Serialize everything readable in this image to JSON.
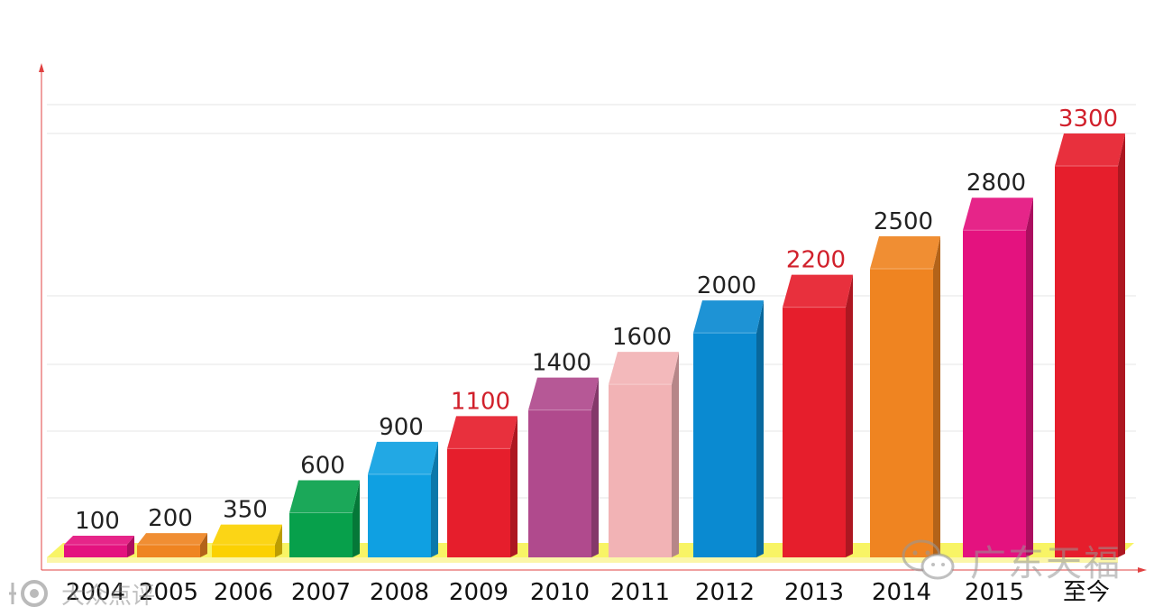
{
  "chart_data": {
    "type": "bar",
    "title": "",
    "xlabel": "",
    "ylabel": "",
    "ylim": [
      0,
      3300
    ],
    "grid": true,
    "categories": [
      "2004",
      "2005",
      "2006",
      "2007",
      "2008",
      "2009",
      "2010",
      "2011",
      "2012",
      "2013",
      "2014",
      "2015",
      "至今"
    ],
    "values": [
      100,
      200,
      350,
      600,
      900,
      1100,
      1400,
      1600,
      2000,
      2200,
      2500,
      2800,
      3300
    ],
    "value_labels": [
      "100",
      "200",
      "350",
      "600",
      "900",
      "1100",
      "1400",
      "1600",
      "2000",
      "2200",
      "2500",
      "2800",
      "3300"
    ],
    "bar_colors": [
      "#e4127f",
      "#ef8421",
      "#fbd102",
      "#07a04b",
      "#0fa0e2",
      "#e61e2c",
      "#b04a8d",
      "#f2b3b5",
      "#0a8ad1",
      "#e61e2c",
      "#ef8421",
      "#e4127f",
      "#e61e2c"
    ],
    "label_colors": [
      "#222222",
      "#222222",
      "#222222",
      "#222222",
      "#222222",
      "#d1202b",
      "#222222",
      "#222222",
      "#222222",
      "#d1202b",
      "#222222",
      "#222222",
      "#d1202b"
    ],
    "axis_color": "#e04040",
    "floor_color": "#f7f24a"
  },
  "watermark": {
    "text": "广东天福",
    "icon": "wechat-icon"
  },
  "corner_mark": {
    "text": "大众点评",
    "icon": "logo-icon"
  }
}
